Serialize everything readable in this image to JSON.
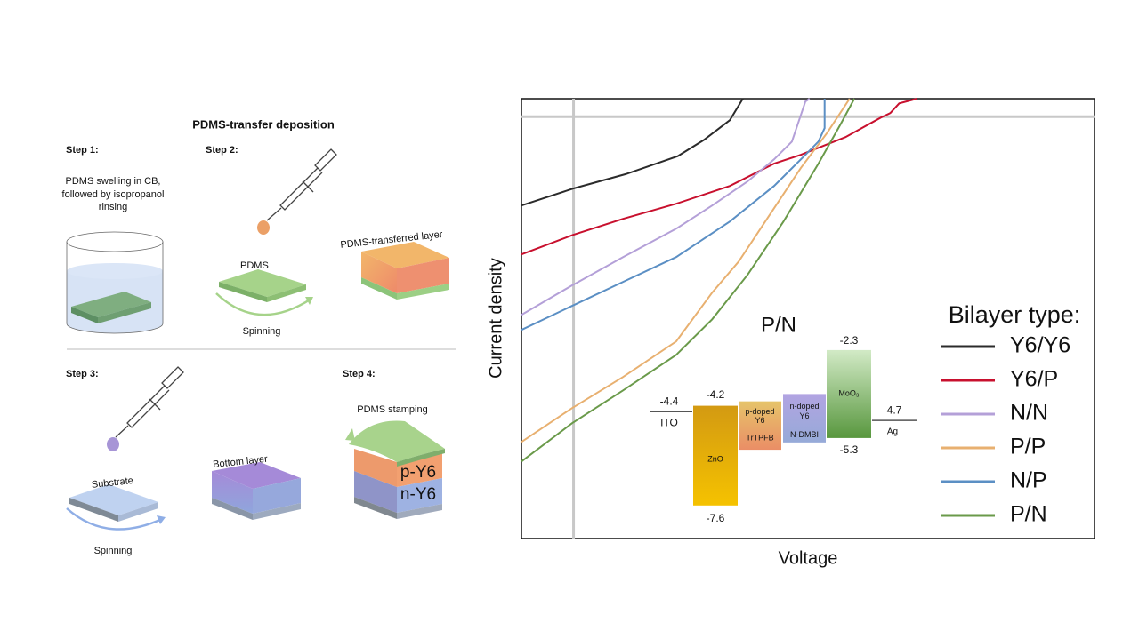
{
  "process": {
    "title": "PDMS-transfer deposition",
    "step1": {
      "label": "Step 1:",
      "description": [
        "PDMS swelling in CB,",
        "followed by isopropanol",
        "rinsing"
      ]
    },
    "step2": {
      "label": "Step 2:",
      "pdms": "PDMS",
      "spinning": "Spinning",
      "result": "PDMS-transferred layer"
    },
    "step3": {
      "label": "Step 3:",
      "substrate": "Substrate",
      "spinning": "Spinning",
      "result": "Bottom layer"
    },
    "step4": {
      "label": "Step 4:",
      "stamping": "PDMS stamping",
      "top_layer": "p-Y6",
      "bottom_layer": "n-Y6"
    }
  },
  "chart_data": {
    "type": "line",
    "xlabel": "Voltage",
    "ylabel": "Current density",
    "annotation": "P/N",
    "legend_title": "Bilayer type:",
    "legend": "right",
    "xlim": [
      -10,
      100
    ],
    "ylim": [
      -235,
      10
    ],
    "series": [
      {
        "name": "Y6/Y6",
        "color": "#2b2b2b",
        "x": [
          -10,
          0,
          10,
          20,
          25,
          30,
          32.5
        ],
        "values": [
          -49.5,
          -40,
          -32,
          -22,
          -13,
          -2,
          10
        ]
      },
      {
        "name": "Y6/P",
        "color": "#c8102e",
        "x": [
          -10,
          0,
          9.5,
          19.7,
          30,
          38.5,
          43.6,
          52.2,
          59,
          60.8,
          62.5,
          65.9
        ],
        "values": [
          -76.7,
          -65.8,
          -56.9,
          -48.5,
          -38.6,
          -26.2,
          -21.3,
          -11.4,
          -0.5,
          2,
          7.4,
          10
        ]
      },
      {
        "name": "N/N",
        "color": "#b4a0d8",
        "x": [
          -10,
          -0.3,
          9.5,
          19.7,
          26.6,
          33.4,
          38.5,
          41.9,
          44.5,
          45.3
        ],
        "values": [
          -110.4,
          -94,
          -78.2,
          -62.4,
          -49.5,
          -36.1,
          -23.8,
          -13.9,
          8.4,
          10
        ]
      },
      {
        "name": "P/P",
        "color": "#e8b070",
        "x": [
          -10,
          -0.3,
          9.5,
          19.7,
          26.6,
          31.7,
          36.8,
          43.6,
          48.7,
          53
        ],
        "values": [
          -181.2,
          -162.4,
          -145,
          -125.2,
          -98,
          -80.7,
          -58.4,
          -28.7,
          -8.9,
          10
        ]
      },
      {
        "name": "N/P",
        "color": "#5b8fc4",
        "x": [
          -10,
          -0.3,
          9.5,
          19.7,
          30,
          38.5,
          44.5,
          47,
          48.2,
          48.2
        ],
        "values": [
          -118.8,
          -105.4,
          -92,
          -78.2,
          -58.4,
          -38.6,
          -21.3,
          -13.9,
          -6.4,
          10
        ]
      },
      {
        "name": "P/N",
        "color": "#6a9a4a",
        "x": [
          -10,
          -0.3,
          9.5,
          19.7,
          26.6,
          33.4,
          40.3,
          47,
          51.3,
          53.9
        ],
        "values": [
          -192.1,
          -170.8,
          -152.5,
          -132.7,
          -112.9,
          -88.1,
          -58.4,
          -26.2,
          -4,
          10
        ]
      }
    ]
  },
  "energy_diagram": {
    "ito": {
      "name": "ITO",
      "level": -4.4
    },
    "zno": {
      "name": "ZnO",
      "lumo": -4.2,
      "homo": -7.6
    },
    "p_doped": {
      "label": [
        "p-doped",
        "Y6"
      ],
      "dopant": "TrTPFB",
      "top": -4.05,
      "bottom": -5.7
    },
    "n_doped": {
      "label": [
        "n-doped",
        "Y6"
      ],
      "dopant": "N-DMBI",
      "top": -3.8,
      "bottom": -5.45
    },
    "moo3": {
      "name": "MoO₃",
      "lumo": -2.3,
      "homo": -5.3
    },
    "ag": {
      "name": "Ag",
      "level": -4.7
    }
  }
}
